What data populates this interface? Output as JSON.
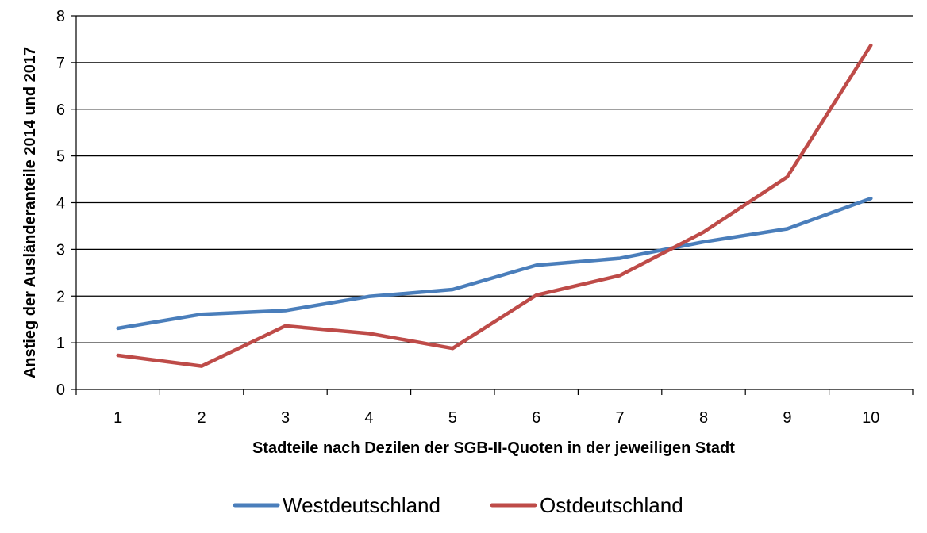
{
  "chart_data": {
    "type": "line",
    "title": "",
    "xlabel": "Stadteile nach Dezilen der SGB-II-Quoten in der jeweiligen Stadt",
    "ylabel": "Anstieg der Ausländeranteile 2014 und 2017",
    "categories": [
      "1",
      "2",
      "3",
      "4",
      "5",
      "6",
      "7",
      "8",
      "9",
      "10"
    ],
    "ylim": [
      0,
      8
    ],
    "yticks": [
      "0",
      "1",
      "2",
      "3",
      "4",
      "5",
      "6",
      "7",
      "8"
    ],
    "grid": true,
    "legend_position": "bottom",
    "series": [
      {
        "name": "Westdeutschland",
        "color": "#4a7ebb",
        "values": [
          1.31,
          1.61,
          1.69,
          1.99,
          2.14,
          2.66,
          2.81,
          3.16,
          3.44,
          4.09
        ]
      },
      {
        "name": "Ostdeutschland",
        "color": "#be4b48",
        "values": [
          0.73,
          0.5,
          1.36,
          1.2,
          0.88,
          2.02,
          2.44,
          3.37,
          4.55,
          7.37
        ]
      }
    ]
  }
}
